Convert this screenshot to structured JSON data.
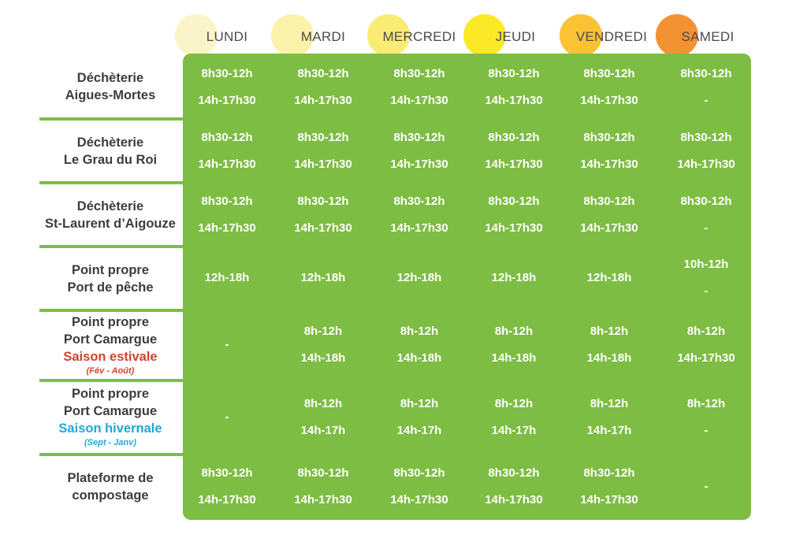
{
  "days": [
    {
      "label": "LUNDI",
      "color": "#fbf3c6"
    },
    {
      "label": "MARDI",
      "color": "#fbf0a4"
    },
    {
      "label": "MERCREDI",
      "color": "#faeb6a"
    },
    {
      "label": "JEUDI",
      "color": "#fbe81c"
    },
    {
      "label": "VENDREDI",
      "color": "#fbbf2a"
    },
    {
      "label": "SAMEDI",
      "color": "#f28c28"
    }
  ],
  "rows": [
    {
      "label_lines": [
        "Déchèterie",
        "Aigues-Mortes"
      ],
      "cells": [
        [
          "8h30-12h",
          "14h-17h30"
        ],
        [
          "8h30-12h",
          "14h-17h30"
        ],
        [
          "8h30-12h",
          "14h-17h30"
        ],
        [
          "8h30-12h",
          "14h-17h30"
        ],
        [
          "8h30-12h",
          "14h-17h30"
        ],
        [
          "8h30-12h",
          "-"
        ]
      ]
    },
    {
      "label_lines": [
        "Déchèterie",
        "Le Grau du Roi"
      ],
      "cells": [
        [
          "8h30-12h",
          "14h-17h30"
        ],
        [
          "8h30-12h",
          "14h-17h30"
        ],
        [
          "8h30-12h",
          "14h-17h30"
        ],
        [
          "8h30-12h",
          "14h-17h30"
        ],
        [
          "8h30-12h",
          "14h-17h30"
        ],
        [
          "8h30-12h",
          "14h-17h30"
        ]
      ]
    },
    {
      "label_lines": [
        "Déchèterie",
        "St-Laurent d’Aigouze"
      ],
      "cells": [
        [
          "8h30-12h",
          "14h-17h30"
        ],
        [
          "8h30-12h",
          "14h-17h30"
        ],
        [
          "8h30-12h",
          "14h-17h30"
        ],
        [
          "8h30-12h",
          "14h-17h30"
        ],
        [
          "8h30-12h",
          "14h-17h30"
        ],
        [
          "8h30-12h",
          "-"
        ]
      ]
    },
    {
      "label_lines": [
        "Point propre",
        "Port de pêche"
      ],
      "cells": [
        [
          "12h-18h"
        ],
        [
          "12h-18h"
        ],
        [
          "12h-18h"
        ],
        [
          "12h-18h"
        ],
        [
          "12h-18h"
        ],
        [
          "10h-12h",
          "-"
        ]
      ]
    },
    {
      "label_lines": [
        "Point propre",
        "Port Camargue"
      ],
      "season": "Saison estivale",
      "season_dates": "(Fév - Août)",
      "cells": [
        [
          "-"
        ],
        [
          "8h-12h",
          "14h-18h"
        ],
        [
          "8h-12h",
          "14h-18h"
        ],
        [
          "8h-12h",
          "14h-18h"
        ],
        [
          "8h-12h",
          "14h-18h"
        ],
        [
          "8h-12h",
          "14h-17h30"
        ]
      ]
    },
    {
      "label_lines": [
        "Point propre",
        "Port Camargue"
      ],
      "season": "Saison hivernale",
      "season_dates": "(Sept - Janv)",
      "cells": [
        [
          "-"
        ],
        [
          "8h-12h",
          "14h-17h"
        ],
        [
          "8h-12h",
          "14h-17h"
        ],
        [
          "8h-12h",
          "14h-17h"
        ],
        [
          "8h-12h",
          "14h-17h"
        ],
        [
          "8h-12h",
          "-"
        ]
      ]
    },
    {
      "label_lines": [
        "Plateforme de",
        "compostage"
      ],
      "cells": [
        [
          "8h30-12h",
          "14h-17h30"
        ],
        [
          "8h30-12h",
          "14h-17h30"
        ],
        [
          "8h30-12h",
          "14h-17h30"
        ],
        [
          "8h30-12h",
          "14h-17h30"
        ],
        [
          "8h30-12h",
          "14h-17h30"
        ],
        [
          "-"
        ]
      ]
    }
  ]
}
